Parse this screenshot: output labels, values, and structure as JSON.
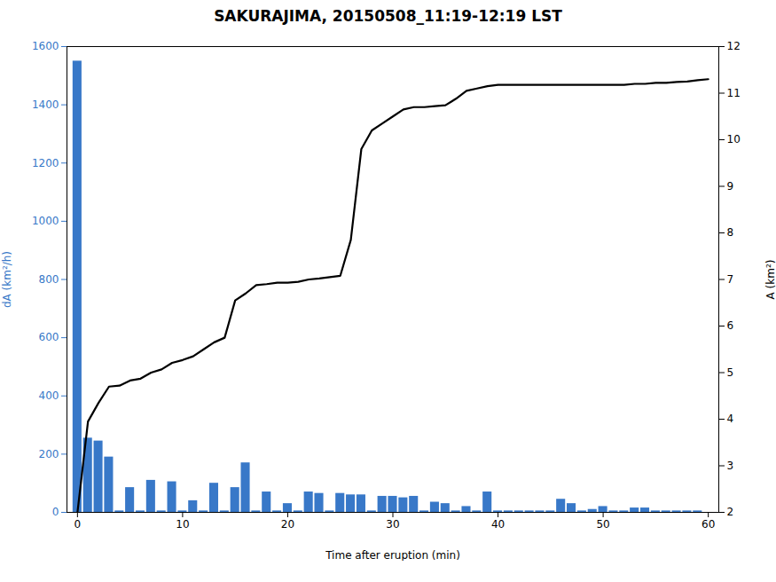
{
  "chart_data": {
    "type": "bar",
    "title": "SAKURAJIMA, 20150508_11:19-12:19 LST",
    "xlabel": "Time after eruption (min)",
    "ylabel": "dA (km²/h)",
    "y2label": "A (km²)",
    "xlim": [
      -1,
      61
    ],
    "xticks": [
      0,
      10,
      20,
      30,
      40,
      50,
      60
    ],
    "ylim": [
      0,
      1600
    ],
    "yticks": [
      0,
      200,
      400,
      600,
      800,
      1000,
      1200,
      1400,
      1600
    ],
    "y2lim": [
      2,
      12
    ],
    "y2ticks": [
      2,
      3,
      4,
      5,
      6,
      7,
      8,
      9,
      10,
      11,
      12
    ],
    "grid": false,
    "series": [
      {
        "type": "bar",
        "color": "#3878c8",
        "x": [
          0,
          1,
          2,
          3,
          4,
          5,
          6,
          7,
          8,
          9,
          10,
          11,
          12,
          13,
          14,
          15,
          16,
          17,
          18,
          19,
          20,
          21,
          22,
          23,
          24,
          25,
          26,
          27,
          28,
          29,
          30,
          31,
          32,
          33,
          34,
          35,
          36,
          37,
          38,
          39,
          40,
          41,
          42,
          43,
          44,
          45,
          46,
          47,
          48,
          49,
          50,
          51,
          52,
          53,
          54,
          55,
          56,
          57,
          58,
          59
        ],
        "values": [
          1550,
          255,
          245,
          190,
          5,
          85,
          5,
          110,
          5,
          105,
          5,
          40,
          5,
          100,
          5,
          85,
          170,
          5,
          70,
          5,
          30,
          5,
          70,
          65,
          5,
          65,
          60,
          60,
          5,
          55,
          55,
          50,
          55,
          5,
          35,
          30,
          5,
          20,
          5,
          70,
          5,
          5,
          5,
          5,
          5,
          5,
          45,
          30,
          5,
          10,
          20,
          5,
          5,
          15,
          15,
          5,
          5,
          5,
          5,
          5
        ]
      },
      {
        "type": "line",
        "color": "#000000",
        "axis": "y2",
        "x": [
          0,
          1,
          2,
          3,
          4,
          5,
          6,
          7,
          8,
          9,
          10,
          11,
          12,
          13,
          14,
          15,
          16,
          17,
          18,
          19,
          20,
          21,
          22,
          23,
          24,
          25,
          26,
          27,
          28,
          29,
          30,
          31,
          32,
          33,
          34,
          35,
          36,
          37,
          38,
          39,
          40,
          41,
          42,
          43,
          44,
          45,
          46,
          47,
          48,
          49,
          50,
          51,
          52,
          53,
          54,
          55,
          56,
          57,
          58,
          59,
          60
        ],
        "values": [
          2.0,
          3.95,
          4.35,
          4.7,
          4.72,
          4.83,
          4.87,
          5.0,
          5.07,
          5.21,
          5.27,
          5.35,
          5.5,
          5.65,
          5.75,
          6.55,
          6.7,
          6.88,
          6.9,
          6.93,
          6.93,
          6.95,
          7.0,
          7.02,
          7.05,
          7.08,
          7.85,
          9.8,
          10.2,
          10.35,
          10.5,
          10.65,
          10.7,
          10.7,
          10.72,
          10.74,
          10.88,
          11.05,
          11.1,
          11.15,
          11.18,
          11.18,
          11.18,
          11.18,
          11.18,
          11.18,
          11.18,
          11.18,
          11.18,
          11.18,
          11.18,
          11.18,
          11.18,
          11.2,
          11.2,
          11.22,
          11.22,
          11.24,
          11.25,
          11.28,
          11.3
        ]
      }
    ]
  }
}
